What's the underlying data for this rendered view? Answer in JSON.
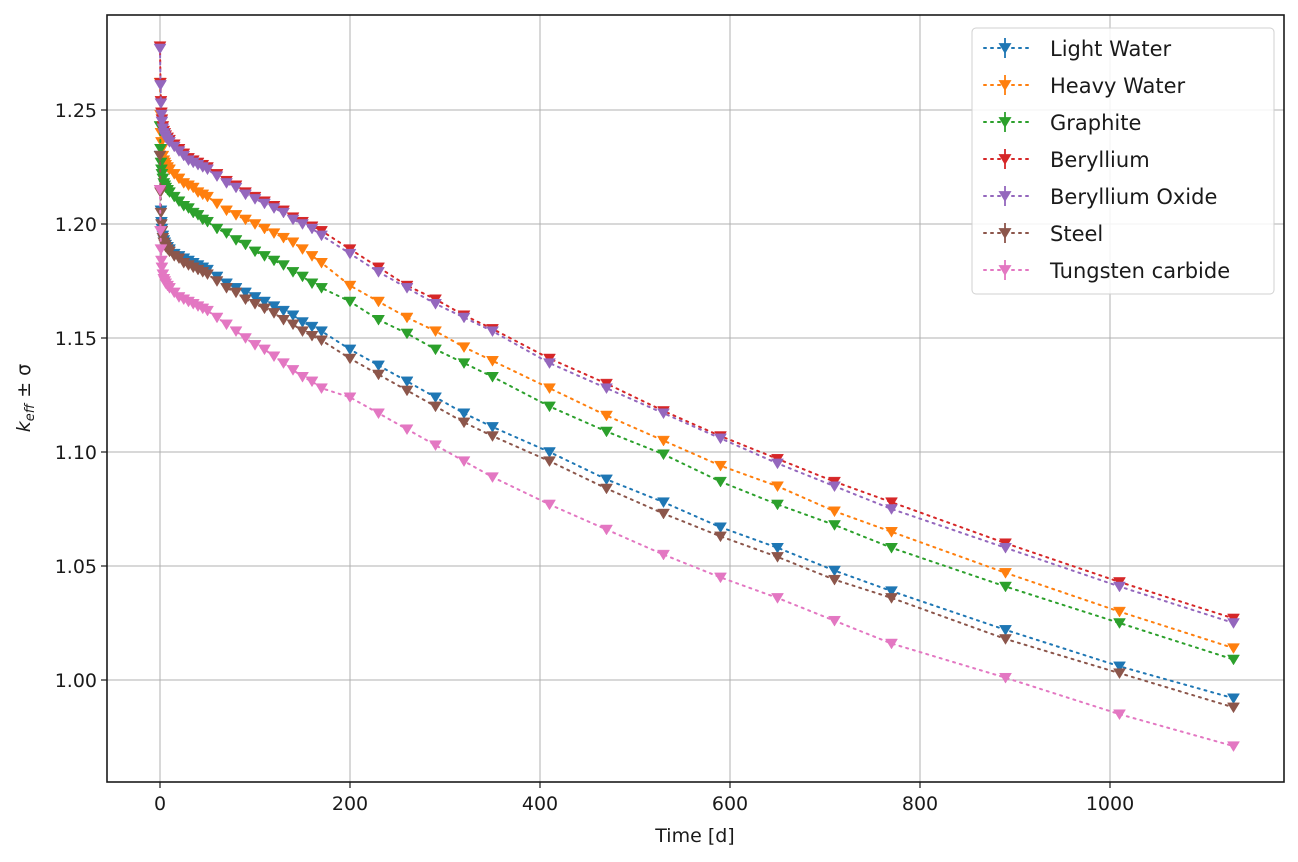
{
  "chart_data": {
    "type": "line",
    "title": "",
    "xlabel": "Time [d]",
    "ylabel": "k_eff ± σ",
    "ylabel_parts": {
      "base": "k",
      "sub": "eff",
      "rest": " ± σ"
    },
    "xlim": [
      -50,
      1180
    ],
    "ylim": [
      0.957,
      1.293
    ],
    "xticks": [
      0,
      200,
      400,
      600,
      800,
      1000
    ],
    "yticks": [
      1.0,
      1.05,
      1.1,
      1.15,
      1.2,
      1.25
    ],
    "ytick_labels": [
      "1.00",
      "1.05",
      "1.10",
      "1.15",
      "1.20",
      "1.25"
    ],
    "grid": true,
    "legend_position": "upper right",
    "marker": "triangle-down",
    "linestyle": "dotted",
    "x": [
      0,
      0.5,
      1,
      1.5,
      2,
      3,
      4,
      5,
      6,
      8,
      10,
      15,
      20,
      25,
      30,
      35,
      40,
      45,
      50,
      60,
      70,
      80,
      90,
      100,
      110,
      120,
      130,
      140,
      150,
      160,
      170,
      200,
      230,
      260,
      290,
      320,
      350,
      410,
      470,
      530,
      590,
      650,
      710,
      770,
      890,
      1010,
      1130
    ],
    "series": [
      {
        "name": "Light Water",
        "color": "#1f77b4",
        "values": [
          1.23,
          1.215,
          1.206,
          1.201,
          1.198,
          1.195,
          1.193,
          1.192,
          1.191,
          1.19,
          1.189,
          1.187,
          1.186,
          1.185,
          1.184,
          1.183,
          1.182,
          1.181,
          1.18,
          1.177,
          1.174,
          1.172,
          1.17,
          1.168,
          1.166,
          1.164,
          1.162,
          1.16,
          1.157,
          1.155,
          1.153,
          1.145,
          1.138,
          1.131,
          1.124,
          1.117,
          1.111,
          1.1,
          1.088,
          1.078,
          1.067,
          1.058,
          1.048,
          1.039,
          1.022,
          1.006,
          0.992
        ]
      },
      {
        "name": "Heavy Water",
        "color": "#ff7f0e",
        "values": [
          1.262,
          1.248,
          1.24,
          1.236,
          1.233,
          1.23,
          1.228,
          1.227,
          1.226,
          1.225,
          1.224,
          1.222,
          1.22,
          1.218,
          1.217,
          1.216,
          1.214,
          1.213,
          1.212,
          1.209,
          1.206,
          1.204,
          1.202,
          1.2,
          1.198,
          1.196,
          1.194,
          1.192,
          1.189,
          1.186,
          1.183,
          1.173,
          1.166,
          1.159,
          1.153,
          1.146,
          1.14,
          1.128,
          1.116,
          1.105,
          1.094,
          1.085,
          1.074,
          1.065,
          1.047,
          1.03,
          1.014
        ]
      },
      {
        "name": "Graphite",
        "color": "#2ca02c",
        "values": [
          1.243,
          1.233,
          1.227,
          1.224,
          1.222,
          1.22,
          1.218,
          1.217,
          1.216,
          1.215,
          1.214,
          1.212,
          1.21,
          1.208,
          1.207,
          1.205,
          1.204,
          1.202,
          1.201,
          1.198,
          1.196,
          1.193,
          1.191,
          1.188,
          1.186,
          1.184,
          1.182,
          1.179,
          1.177,
          1.174,
          1.172,
          1.166,
          1.158,
          1.152,
          1.145,
          1.139,
          1.133,
          1.12,
          1.109,
          1.099,
          1.087,
          1.077,
          1.068,
          1.058,
          1.041,
          1.025,
          1.009
        ]
      },
      {
        "name": "Beryllium",
        "color": "#d62728",
        "values": [
          1.278,
          1.262,
          1.254,
          1.249,
          1.246,
          1.243,
          1.241,
          1.24,
          1.239,
          1.238,
          1.237,
          1.235,
          1.233,
          1.231,
          1.229,
          1.228,
          1.227,
          1.226,
          1.225,
          1.222,
          1.219,
          1.217,
          1.214,
          1.212,
          1.21,
          1.208,
          1.206,
          1.203,
          1.201,
          1.199,
          1.197,
          1.189,
          1.181,
          1.173,
          1.167,
          1.16,
          1.154,
          1.141,
          1.13,
          1.118,
          1.107,
          1.097,
          1.087,
          1.078,
          1.06,
          1.043,
          1.027
        ]
      },
      {
        "name": "Beryllium Oxide",
        "color": "#9467bd",
        "values": [
          1.277,
          1.261,
          1.253,
          1.248,
          1.245,
          1.242,
          1.24,
          1.239,
          1.238,
          1.237,
          1.236,
          1.234,
          1.232,
          1.23,
          1.228,
          1.227,
          1.226,
          1.225,
          1.224,
          1.221,
          1.218,
          1.216,
          1.213,
          1.211,
          1.209,
          1.207,
          1.205,
          1.202,
          1.2,
          1.198,
          1.195,
          1.187,
          1.179,
          1.172,
          1.165,
          1.159,
          1.153,
          1.139,
          1.128,
          1.117,
          1.106,
          1.095,
          1.085,
          1.075,
          1.058,
          1.041,
          1.025
        ]
      },
      {
        "name": "Steel",
        "color": "#8c564b",
        "values": [
          1.23,
          1.214,
          1.205,
          1.2,
          1.197,
          1.194,
          1.192,
          1.191,
          1.19,
          1.189,
          1.188,
          1.186,
          1.185,
          1.183,
          1.182,
          1.181,
          1.18,
          1.179,
          1.178,
          1.175,
          1.172,
          1.17,
          1.167,
          1.165,
          1.163,
          1.161,
          1.158,
          1.156,
          1.153,
          1.151,
          1.149,
          1.141,
          1.134,
          1.127,
          1.12,
          1.113,
          1.107,
          1.096,
          1.084,
          1.073,
          1.063,
          1.054,
          1.044,
          1.036,
          1.018,
          1.003,
          0.988
        ]
      },
      {
        "name": "Tungsten carbide",
        "color": "#e377c2",
        "values": [
          1.215,
          1.197,
          1.189,
          1.184,
          1.181,
          1.178,
          1.176,
          1.175,
          1.174,
          1.173,
          1.172,
          1.17,
          1.168,
          1.167,
          1.166,
          1.165,
          1.164,
          1.163,
          1.162,
          1.159,
          1.156,
          1.153,
          1.15,
          1.147,
          1.145,
          1.142,
          1.139,
          1.136,
          1.133,
          1.131,
          1.128,
          1.124,
          1.117,
          1.11,
          1.103,
          1.096,
          1.089,
          1.077,
          1.066,
          1.055,
          1.045,
          1.036,
          1.026,
          1.016,
          1.001,
          0.985,
          0.971
        ]
      }
    ]
  }
}
